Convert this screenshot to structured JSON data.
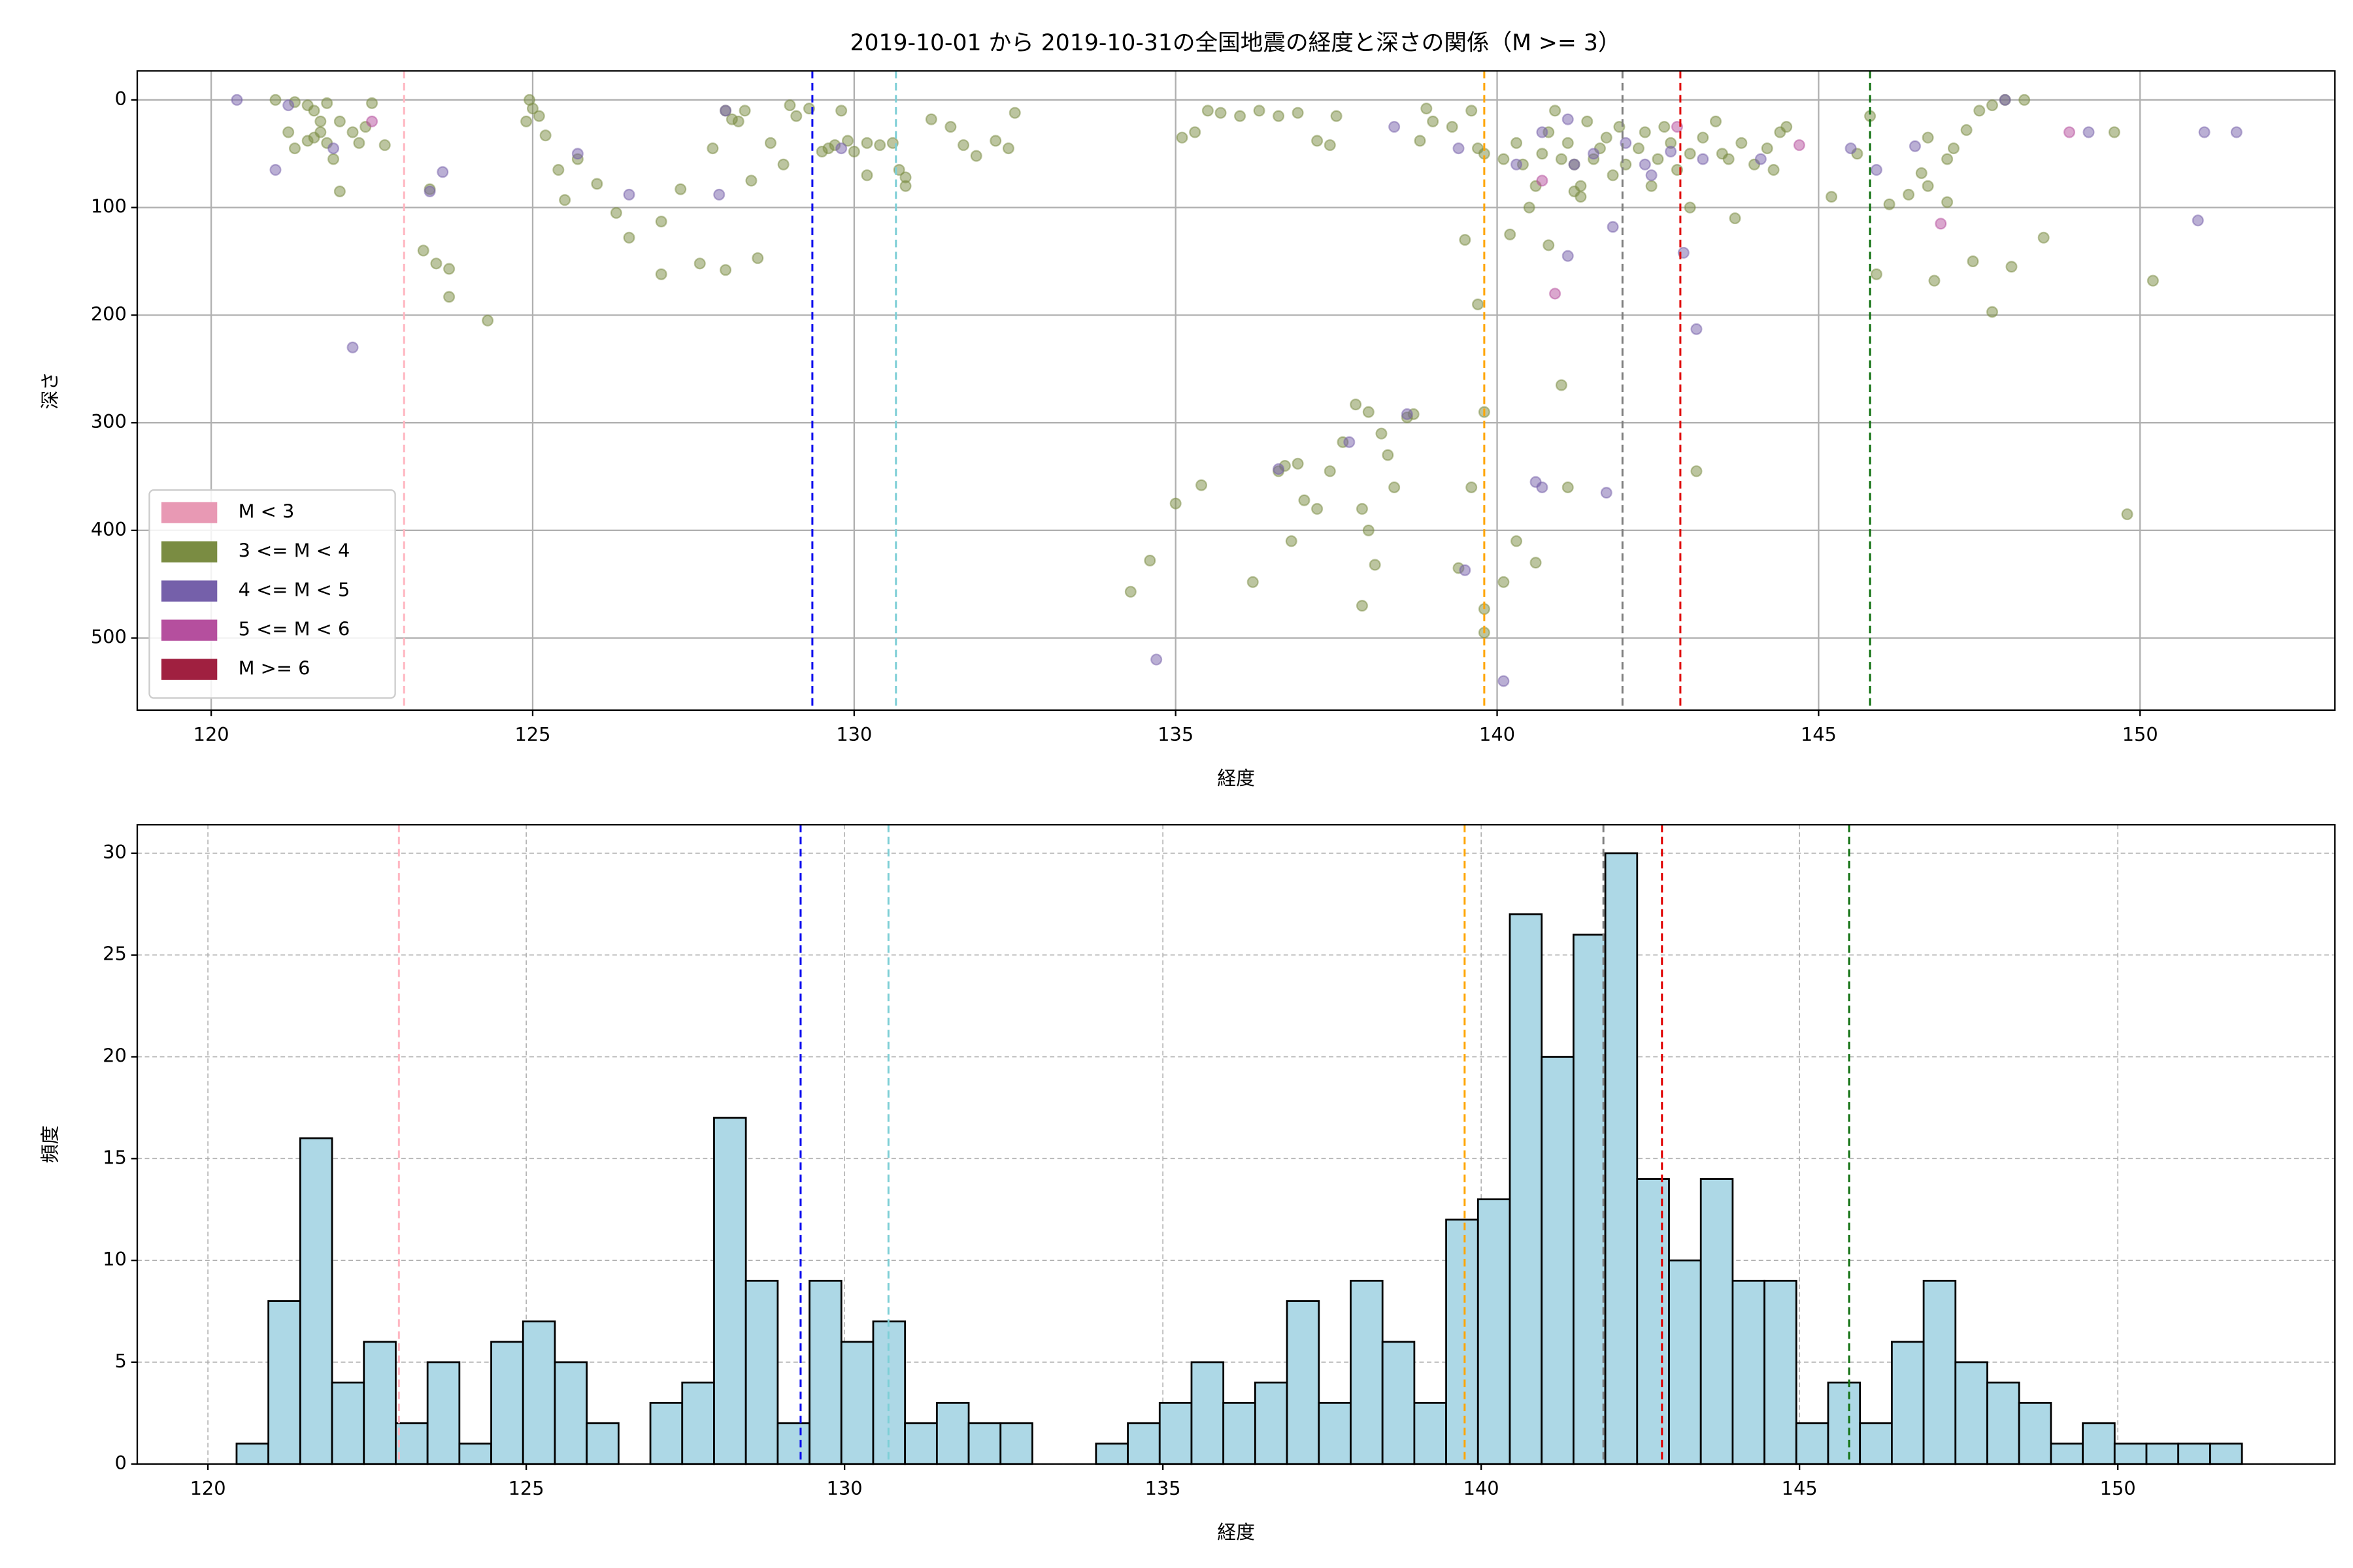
{
  "chart_data": [
    {
      "type": "scatter",
      "title": "2019-10-01 から 2019-10-31の全国地震の経度と深さの関係（M >= 3）",
      "x_label": "経度",
      "y_label": "深さ",
      "xlim": [
        118.85,
        153.03
      ],
      "ylim": [
        567,
        -27
      ],
      "xticks": [
        120,
        125,
        130,
        135,
        140,
        145,
        150
      ],
      "yticks": [
        0,
        100,
        200,
        300,
        400,
        500
      ],
      "grid": true,
      "legend": "lower left",
      "alpha": 0.5,
      "series": [
        {
          "name": "M < 3",
          "color": "#e899b4",
          "x": [],
          "y": []
        },
        {
          "name": "3 <= M < 4",
          "color": "#7a8c42",
          "x": [
            121.0,
            121.3,
            121.5,
            121.6,
            121.8,
            121.3,
            121.5,
            121.6,
            121.7,
            121.8,
            121.9,
            122.0,
            122.2,
            122.4,
            121.2,
            122.0,
            122.5,
            122.7,
            122.3,
            121.7,
            123.3,
            123.5,
            123.7,
            123.7,
            124.3,
            123.4,
            124.9,
            124.95,
            125.0,
            125.1,
            125.2,
            125.4,
            125.5,
            125.7,
            126.0,
            126.3,
            126.5,
            127.0,
            127.0,
            127.3,
            127.6,
            128.0,
            128.1,
            128.2,
            128.3,
            127.8,
            128.0,
            128.4,
            128.7,
            128.9,
            129.1,
            129.3,
            128.5,
            129.0,
            129.5,
            129.6,
            129.7,
            129.8,
            129.9,
            130.0,
            130.2,
            130.2,
            130.4,
            130.6,
            130.7,
            130.8,
            130.8,
            131.2,
            131.5,
            131.7,
            131.9,
            132.2,
            132.4,
            132.5,
            135.1,
            135.3,
            135.5,
            135.7,
            136.0,
            136.3,
            136.6,
            136.9,
            137.2,
            137.5,
            137.4,
            135.0,
            135.4,
            136.2,
            136.6,
            136.7,
            136.9,
            136.8,
            137.0,
            137.2,
            137.4,
            137.6,
            137.8,
            138.0,
            138.2,
            138.3,
            138.6,
            138.7,
            137.9,
            138.0,
            138.1,
            137.9,
            138.4,
            134.6,
            134.3,
            138.9,
            139.0,
            138.8,
            139.3,
            139.6,
            139.7,
            139.8,
            139.5,
            139.7,
            139.8,
            139.4,
            139.8,
            139.8,
            139.6,
            140.1,
            140.3,
            140.4,
            140.5,
            140.2,
            140.6,
            140.7,
            140.8,
            140.9,
            141.0,
            141.1,
            141.2,
            141.3,
            141.4,
            141.5,
            141.6,
            141.7,
            141.8,
            141.9,
            141.2,
            141.3,
            140.8,
            141.0,
            140.1,
            140.6,
            141.1,
            140.3,
            142.0,
            142.2,
            142.3,
            142.5,
            142.6,
            142.7,
            142.8,
            143.0,
            143.2,
            143.4,
            143.6,
            143.8,
            144.0,
            144.2,
            144.4,
            144.5,
            143.0,
            143.1,
            142.4,
            143.5,
            143.7,
            144.3,
            145.2,
            145.6,
            145.8,
            145.9,
            146.1,
            146.4,
            146.6,
            146.7,
            146.8,
            146.7,
            147.0,
            147.1,
            147.3,
            147.5,
            147.7,
            147.9,
            148.2,
            147.4,
            147.7,
            148.0,
            148.5,
            149.6,
            150.2,
            149.8,
            147.0
          ],
          "y": [
            0,
            2,
            5,
            10,
            3,
            45,
            38,
            35,
            30,
            40,
            55,
            20,
            30,
            25,
            30,
            85,
            3,
            42,
            40,
            20,
            140,
            152,
            157,
            183,
            205,
            83,
            20,
            0,
            8,
            15,
            33,
            65,
            93,
            55,
            78,
            105,
            128,
            113,
            162,
            83,
            152,
            10,
            18,
            20,
            10,
            45,
            158,
            75,
            40,
            60,
            15,
            8,
            147,
            5,
            48,
            45,
            42,
            10,
            38,
            48,
            40,
            70,
            42,
            40,
            65,
            80,
            72,
            18,
            25,
            42,
            52,
            38,
            45,
            12,
            35,
            30,
            10,
            12,
            15,
            10,
            15,
            12,
            38,
            15,
            42,
            375,
            358,
            448,
            345,
            340,
            338,
            410,
            372,
            380,
            345,
            318,
            283,
            290,
            310,
            330,
            295,
            292,
            380,
            400,
            432,
            470,
            360,
            428,
            457,
            8,
            20,
            38,
            25,
            10,
            45,
            50,
            130,
            190,
            290,
            435,
            473,
            495,
            360,
            55,
            40,
            60,
            100,
            125,
            80,
            50,
            30,
            10,
            55,
            40,
            60,
            80,
            20,
            55,
            45,
            35,
            70,
            25,
            85,
            90,
            135,
            265,
            448,
            430,
            360,
            410,
            60,
            45,
            30,
            55,
            25,
            40,
            65,
            50,
            35,
            20,
            55,
            40,
            60,
            45,
            30,
            25,
            100,
            345,
            80,
            50,
            110,
            65,
            90,
            50,
            15,
            162,
            97,
            88,
            68,
            80,
            168,
            35,
            95,
            45,
            28,
            10,
            5,
            0,
            0,
            150,
            197,
            155,
            128,
            30,
            168,
            385,
            55
          ]
        },
        {
          "name": "4 <= M < 5",
          "color": "#7560aa",
          "x": [
            120.4,
            121.0,
            121.2,
            121.9,
            122.2,
            123.4,
            123.6,
            125.7,
            126.5,
            127.9,
            128.0,
            129.8,
            134.7,
            136.6,
            137.7,
            138.4,
            138.6,
            139.4,
            139.5,
            140.1,
            140.3,
            140.6,
            140.7,
            140.7,
            141.1,
            141.1,
            141.2,
            141.5,
            141.7,
            141.8,
            142.0,
            142.3,
            142.4,
            142.9,
            143.1,
            143.2,
            144.1,
            145.5,
            145.9,
            146.5,
            150.9,
            151.0,
            151.5,
            149.2,
            147.9,
            142.7
          ],
          "y": [
            0,
            65,
            5,
            45,
            230,
            85,
            67,
            50,
            88,
            88,
            10,
            45,
            520,
            343,
            318,
            25,
            292,
            45,
            437,
            540,
            60,
            355,
            360,
            30,
            145,
            18,
            60,
            50,
            365,
            118,
            40,
            60,
            70,
            142,
            213,
            55,
            55,
            45,
            65,
            43,
            112,
            30,
            30,
            30,
            0,
            48
          ]
        },
        {
          "name": "5 <= M < 6",
          "color": "#b54f9e",
          "x": [
            122.5,
            140.7,
            140.9,
            142.8,
            144.7,
            146.9,
            148.9
          ],
          "y": [
            20,
            75,
            180,
            25,
            42,
            115,
            30
          ]
        },
        {
          "name": "M >= 6",
          "color": "#a02040",
          "x": [],
          "y": []
        }
      ],
      "vlines": [
        {
          "x": 123.0,
          "color": "#ffb6c1"
        },
        {
          "x": 129.35,
          "color": "#0000ee"
        },
        {
          "x": 130.65,
          "color": "#7ecfd6"
        },
        {
          "x": 139.8,
          "color": "#ffa500"
        },
        {
          "x": 141.95,
          "color": "#808080"
        },
        {
          "x": 142.85,
          "color": "#e00000"
        },
        {
          "x": 145.8,
          "color": "#107010"
        }
      ]
    },
    {
      "type": "histogram",
      "x_label": "経度",
      "y_label": "頻度",
      "xlim": [
        118.89,
        153.41
      ],
      "ylim": [
        0,
        31.4
      ],
      "xticks": [
        120,
        125,
        130,
        135,
        140,
        145,
        150
      ],
      "yticks": [
        0,
        5,
        10,
        15,
        20,
        25,
        30
      ],
      "grid": true,
      "color": "#add8e6",
      "edgecolor": "#000000",
      "bins": [
        120.45,
        120.95,
        121.45,
        121.95,
        122.45,
        122.95,
        123.45,
        123.95,
        124.45,
        124.95,
        125.45,
        125.95,
        126.45,
        126.95,
        127.45,
        127.95,
        128.45,
        128.95,
        129.45,
        129.95,
        130.45,
        130.95,
        131.45,
        131.95,
        132.45,
        132.95,
        133.45,
        133.95,
        134.45,
        134.95,
        135.45,
        135.95,
        136.45,
        136.95,
        137.45,
        137.95,
        138.45,
        138.95,
        139.45,
        139.95,
        140.45,
        140.95,
        141.45,
        141.95,
        142.45,
        142.95,
        143.45,
        143.95,
        144.45,
        144.95,
        145.45,
        145.95,
        146.45,
        146.95,
        147.45,
        147.95,
        148.45,
        148.95,
        149.45,
        149.95,
        150.45,
        150.95,
        151.45,
        151.95
      ],
      "values": [
        1,
        8,
        16,
        4,
        6,
        2,
        5,
        1,
        6,
        7,
        5,
        2,
        0,
        3,
        4,
        17,
        9,
        2,
        9,
        6,
        7,
        2,
        3,
        2,
        2,
        0,
        0,
        1,
        2,
        3,
        5,
        3,
        4,
        8,
        3,
        9,
        6,
        3,
        12,
        13,
        27,
        20,
        26,
        30,
        14,
        10,
        14,
        9,
        9,
        2,
        4,
        2,
        6,
        9,
        5,
        4,
        3,
        1,
        2,
        1,
        1,
        1,
        1
      ],
      "vlines": [
        {
          "x": 123.0,
          "color": "#ffb6c1"
        },
        {
          "x": 129.31,
          "color": "#0000ee"
        },
        {
          "x": 130.69,
          "color": "#7ecfd6"
        },
        {
          "x": 139.74,
          "color": "#ffa500"
        },
        {
          "x": 141.92,
          "color": "#808080"
        },
        {
          "x": 142.84,
          "color": "#e00000"
        },
        {
          "x": 145.78,
          "color": "#107010"
        }
      ]
    }
  ]
}
